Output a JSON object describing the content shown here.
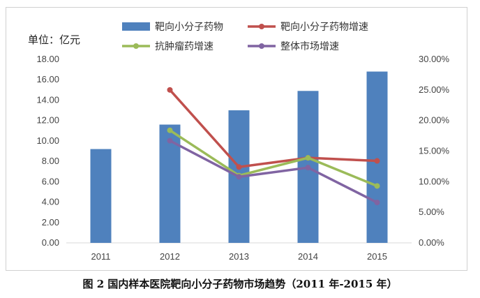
{
  "chart_data": {
    "type": "bar+line",
    "unit_label": "单位：亿元",
    "categories": [
      "2011",
      "2012",
      "2013",
      "2014",
      "2015"
    ],
    "y_left": {
      "range": [
        0,
        18
      ],
      "ticks": [
        "0.00",
        "2.00",
        "4.00",
        "6.00",
        "8.00",
        "10.00",
        "12.00",
        "14.00",
        "16.00",
        "18.00"
      ]
    },
    "y_right": {
      "range": [
        0,
        30
      ],
      "ticks": [
        "0.00%",
        "5.00%",
        "10.00%",
        "15.00%",
        "20.00%",
        "25.00%",
        "30.00%"
      ]
    },
    "series": [
      {
        "name": "靶向小分子药物",
        "type": "bar",
        "axis": "left",
        "color": "#4f81bd",
        "values": [
          9.2,
          11.6,
          13.0,
          14.9,
          16.8
        ]
      },
      {
        "name": "靶向小分子药物增速",
        "type": "line",
        "axis": "right",
        "color": "#c0504d",
        "values": [
          null,
          25.0,
          12.4,
          13.9,
          13.4
        ]
      },
      {
        "name": "抗肿瘤药增速",
        "type": "line",
        "axis": "right",
        "color": "#9bbb59",
        "values": [
          null,
          18.4,
          11.0,
          13.9,
          9.3
        ]
      },
      {
        "name": "整体市场增速",
        "type": "line",
        "axis": "right",
        "color": "#8064a2",
        "values": [
          null,
          16.7,
          10.8,
          12.3,
          6.6
        ]
      }
    ],
    "grid": false,
    "legend_position": "top",
    "caption": "图 2  国内样本医院靶向小分子药物市场趋势（2011 年-2015 年）"
  }
}
